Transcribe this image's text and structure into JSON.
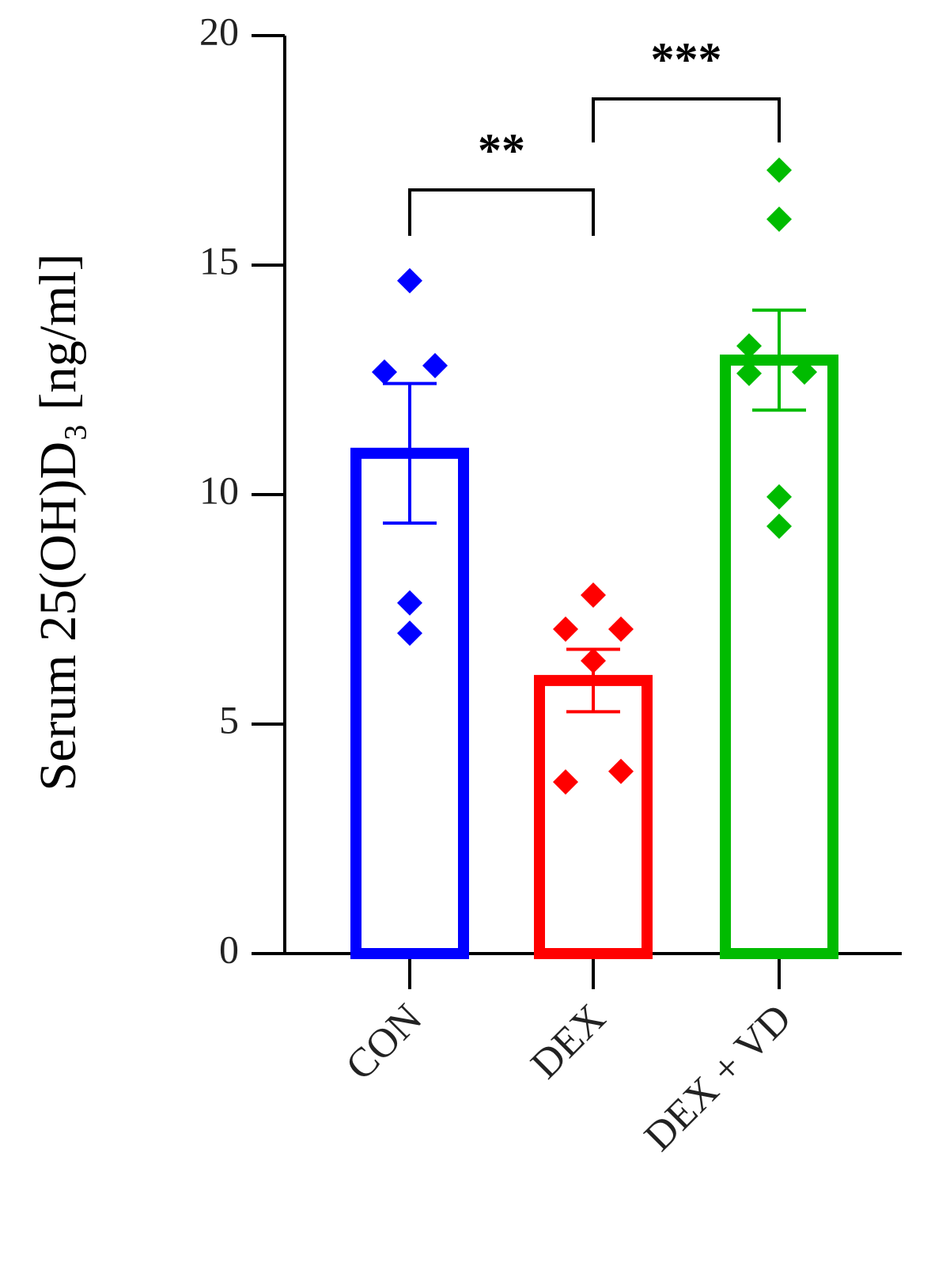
{
  "chart_data": {
    "type": "bar",
    "ylabel": "Serum  25(OH)D₃ [ng/ml]",
    "categories": [
      "CON",
      "DEX",
      "DEX + VD"
    ],
    "colors": [
      "#0000ff",
      "#ff0000",
      "#00bb00"
    ],
    "values": [
      10.9,
      5.95,
      12.93
    ],
    "errors": [
      1.52,
      0.68,
      1.09
    ],
    "points": [
      [
        14.66,
        12.67,
        12.81,
        7.64,
        6.98
      ],
      [
        7.81,
        7.07,
        7.07,
        6.38,
        3.74,
        3.97
      ],
      [
        17.07,
        16.0,
        13.24,
        12.64,
        12.67,
        9.95,
        9.31
      ]
    ],
    "annotations": [
      "**",
      "***"
    ],
    "ylim": [
      0,
      20
    ],
    "yticks": [
      0,
      5,
      10,
      15,
      20
    ]
  }
}
